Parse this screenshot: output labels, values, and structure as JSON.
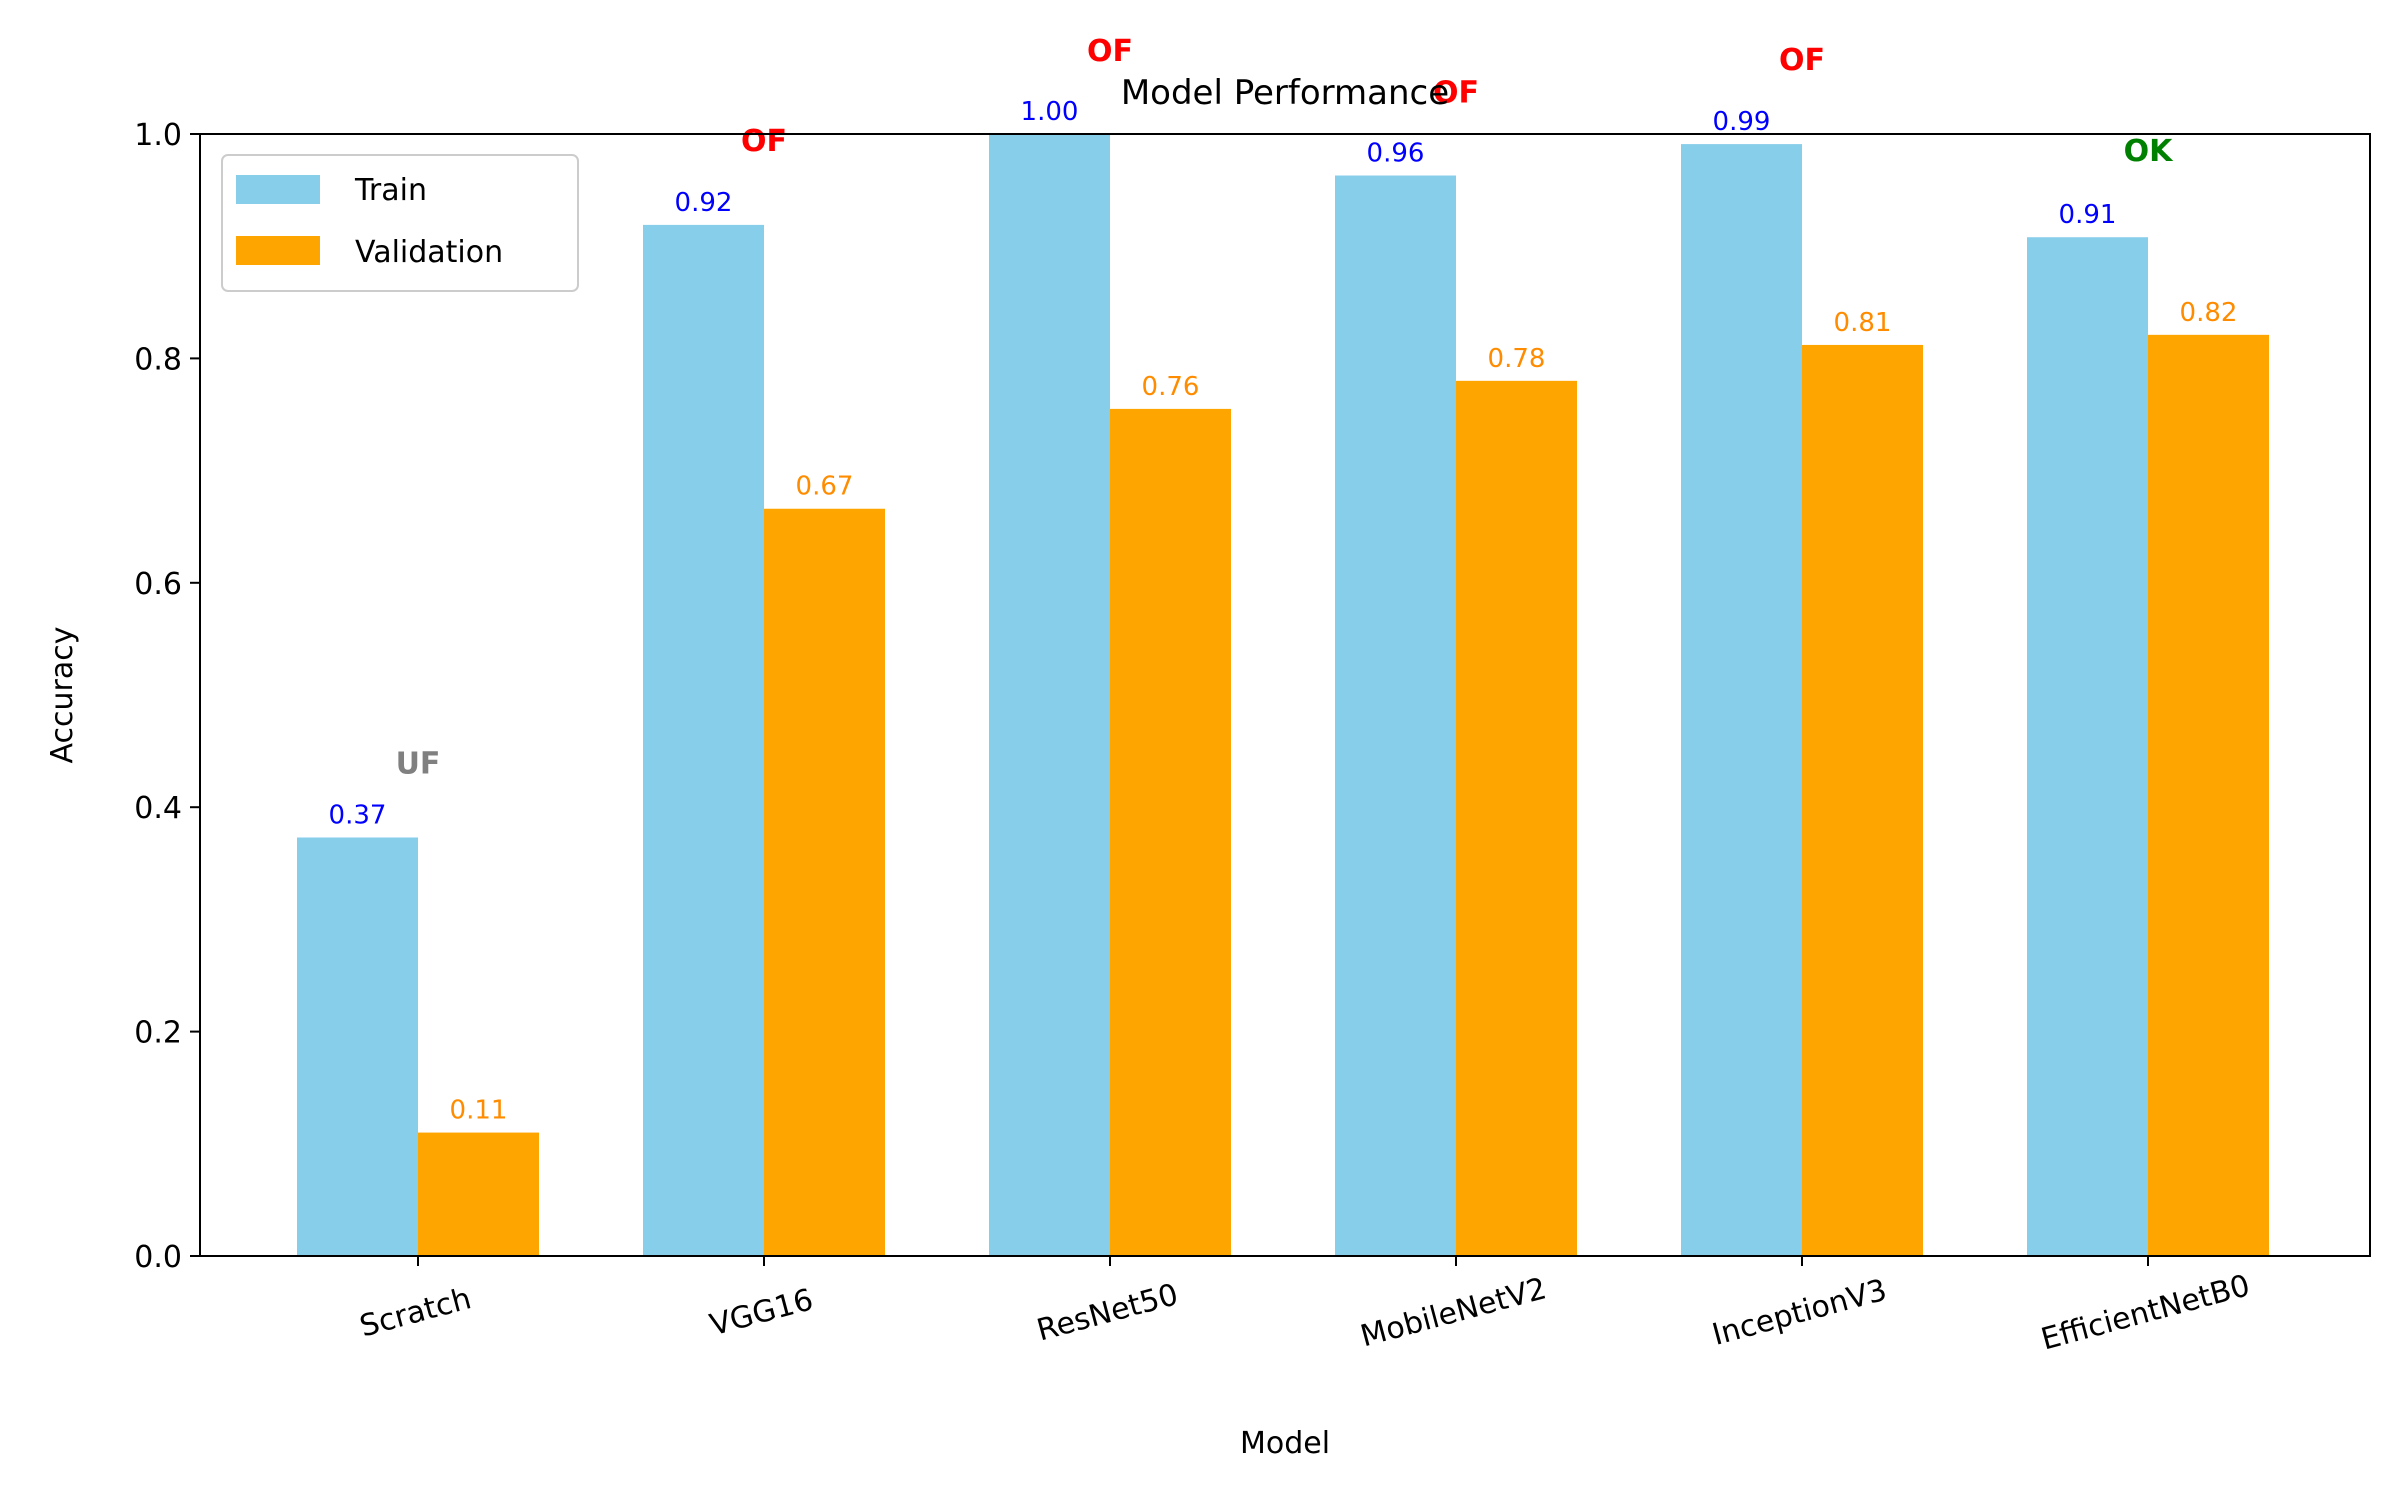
{
  "chart_data": {
    "type": "bar",
    "title": "Model Performance",
    "xlabel": "Model",
    "ylabel": "Accuracy",
    "ylim": [
      0,
      1.0
    ],
    "yticks": [
      "0.0",
      "0.2",
      "0.4",
      "0.6",
      "0.8",
      "1.0"
    ],
    "categories": [
      "Scratch",
      "VGG16",
      "ResNet50",
      "MobileNetV2",
      "InceptionV3",
      "EfficientNetB0"
    ],
    "series": [
      {
        "name": "Train",
        "color": "#87ceeb",
        "label_color": "#0000ff",
        "values": [
          0.373,
          0.919,
          1.0,
          0.963,
          0.991,
          0.908
        ],
        "labels": [
          "0.37",
          "0.92",
          "1.00",
          "0.96",
          "0.99",
          "0.91"
        ]
      },
      {
        "name": "Validation",
        "color": "#ffa500",
        "label_color": "#ff8c00",
        "values": [
          0.11,
          0.666,
          0.755,
          0.78,
          0.812,
          0.821
        ],
        "labels": [
          "0.11",
          "0.67",
          "0.76",
          "0.78",
          "0.81",
          "0.82"
        ]
      }
    ],
    "status_annotations": [
      {
        "text": "UF",
        "color": "#808080",
        "y": 0.43
      },
      {
        "text": "OF",
        "color": "#ff0000",
        "y": 0.985
      },
      {
        "text": "OF",
        "color": "#ff0000",
        "y": 1.065
      },
      {
        "text": "OF",
        "color": "#ff0000",
        "y": 1.028
      },
      {
        "text": "OF",
        "color": "#ff0000",
        "y": 1.057
      },
      {
        "text": "OK",
        "color": "#008000",
        "y": 0.976
      }
    ],
    "legend": {
      "position": "top-left",
      "entries": [
        "Train",
        "Validation"
      ]
    },
    "grid": false
  }
}
